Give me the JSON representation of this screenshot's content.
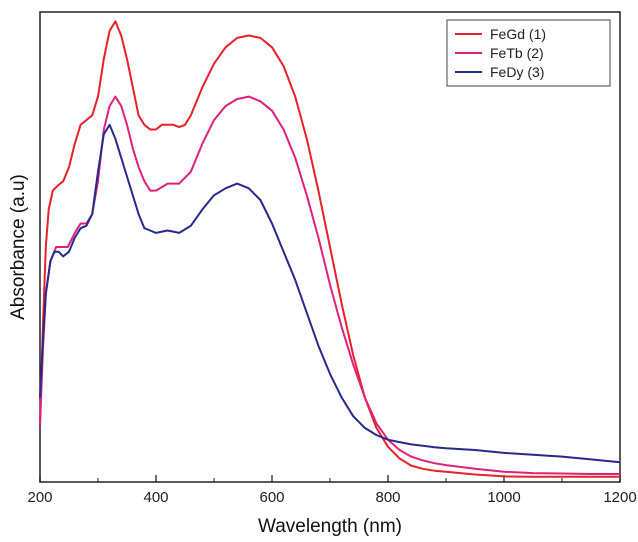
{
  "chart_data": {
    "type": "line",
    "xlabel": "Wavelength (nm)",
    "ylabel": "Absorbance (a.u)",
    "xlim": [
      200,
      1200
    ],
    "ylim": [
      0,
      1
    ],
    "x_ticks": [
      200,
      400,
      600,
      800,
      1000,
      1200
    ],
    "grid": false,
    "legend_position": "top-right",
    "series": [
      {
        "name": "FeGd (1)",
        "color": "#e8202a",
        "points": [
          [
            200,
            0.12
          ],
          [
            205,
            0.33
          ],
          [
            210,
            0.5
          ],
          [
            215,
            0.58
          ],
          [
            222,
            0.62
          ],
          [
            230,
            0.63
          ],
          [
            240,
            0.64
          ],
          [
            250,
            0.67
          ],
          [
            260,
            0.72
          ],
          [
            270,
            0.76
          ],
          [
            280,
            0.77
          ],
          [
            290,
            0.78
          ],
          [
            300,
            0.82
          ],
          [
            310,
            0.9
          ],
          [
            320,
            0.96
          ],
          [
            330,
            0.98
          ],
          [
            340,
            0.95
          ],
          [
            350,
            0.9
          ],
          [
            360,
            0.84
          ],
          [
            370,
            0.78
          ],
          [
            380,
            0.76
          ],
          [
            390,
            0.75
          ],
          [
            400,
            0.75
          ],
          [
            410,
            0.76
          ],
          [
            420,
            0.76
          ],
          [
            430,
            0.76
          ],
          [
            440,
            0.755
          ],
          [
            450,
            0.76
          ],
          [
            460,
            0.78
          ],
          [
            480,
            0.84
          ],
          [
            500,
            0.89
          ],
          [
            520,
            0.925
          ],
          [
            540,
            0.945
          ],
          [
            560,
            0.95
          ],
          [
            580,
            0.945
          ],
          [
            600,
            0.925
          ],
          [
            620,
            0.885
          ],
          [
            640,
            0.82
          ],
          [
            660,
            0.73
          ],
          [
            680,
            0.62
          ],
          [
            700,
            0.5
          ],
          [
            720,
            0.38
          ],
          [
            740,
            0.27
          ],
          [
            760,
            0.18
          ],
          [
            780,
            0.115
          ],
          [
            800,
            0.075
          ],
          [
            820,
            0.05
          ],
          [
            840,
            0.035
          ],
          [
            860,
            0.028
          ],
          [
            880,
            0.024
          ],
          [
            900,
            0.022
          ],
          [
            950,
            0.016
          ],
          [
            1000,
            0.012
          ],
          [
            1050,
            0.011
          ],
          [
            1100,
            0.011
          ],
          [
            1150,
            0.011
          ],
          [
            1200,
            0.011
          ]
        ]
      },
      {
        "name": "FeTb (2)",
        "color": "#e0207a",
        "points": [
          [
            200,
            0.12
          ],
          [
            205,
            0.28
          ],
          [
            210,
            0.4
          ],
          [
            218,
            0.47
          ],
          [
            228,
            0.5
          ],
          [
            238,
            0.5
          ],
          [
            248,
            0.5
          ],
          [
            260,
            0.53
          ],
          [
            270,
            0.55
          ],
          [
            280,
            0.55
          ],
          [
            290,
            0.57
          ],
          [
            300,
            0.64
          ],
          [
            310,
            0.75
          ],
          [
            320,
            0.8
          ],
          [
            330,
            0.82
          ],
          [
            340,
            0.8
          ],
          [
            350,
            0.76
          ],
          [
            360,
            0.71
          ],
          [
            370,
            0.67
          ],
          [
            380,
            0.64
          ],
          [
            390,
            0.62
          ],
          [
            400,
            0.62
          ],
          [
            420,
            0.635
          ],
          [
            440,
            0.635
          ],
          [
            460,
            0.66
          ],
          [
            480,
            0.72
          ],
          [
            500,
            0.77
          ],
          [
            520,
            0.8
          ],
          [
            540,
            0.815
          ],
          [
            560,
            0.82
          ],
          [
            580,
            0.81
          ],
          [
            600,
            0.79
          ],
          [
            620,
            0.75
          ],
          [
            640,
            0.69
          ],
          [
            660,
            0.61
          ],
          [
            680,
            0.52
          ],
          [
            700,
            0.42
          ],
          [
            720,
            0.33
          ],
          [
            740,
            0.25
          ],
          [
            760,
            0.18
          ],
          [
            780,
            0.125
          ],
          [
            800,
            0.09
          ],
          [
            820,
            0.068
          ],
          [
            840,
            0.054
          ],
          [
            860,
            0.046
          ],
          [
            880,
            0.04
          ],
          [
            900,
            0.036
          ],
          [
            950,
            0.028
          ],
          [
            1000,
            0.022
          ],
          [
            1050,
            0.019
          ],
          [
            1100,
            0.018
          ],
          [
            1150,
            0.017
          ],
          [
            1200,
            0.017
          ]
        ]
      },
      {
        "name": "FeDy (3)",
        "color": "#262a8c",
        "points": [
          [
            200,
            0.18
          ],
          [
            205,
            0.3
          ],
          [
            210,
            0.4
          ],
          [
            218,
            0.47
          ],
          [
            225,
            0.49
          ],
          [
            232,
            0.49
          ],
          [
            240,
            0.48
          ],
          [
            250,
            0.49
          ],
          [
            260,
            0.52
          ],
          [
            270,
            0.54
          ],
          [
            280,
            0.545
          ],
          [
            290,
            0.57
          ],
          [
            300,
            0.66
          ],
          [
            310,
            0.74
          ],
          [
            320,
            0.76
          ],
          [
            330,
            0.73
          ],
          [
            340,
            0.69
          ],
          [
            350,
            0.65
          ],
          [
            360,
            0.61
          ],
          [
            370,
            0.57
          ],
          [
            380,
            0.54
          ],
          [
            390,
            0.535
          ],
          [
            400,
            0.53
          ],
          [
            420,
            0.535
          ],
          [
            440,
            0.53
          ],
          [
            460,
            0.545
          ],
          [
            480,
            0.58
          ],
          [
            500,
            0.61
          ],
          [
            520,
            0.625
          ],
          [
            540,
            0.635
          ],
          [
            560,
            0.625
          ],
          [
            580,
            0.6
          ],
          [
            600,
            0.55
          ],
          [
            620,
            0.49
          ],
          [
            640,
            0.43
          ],
          [
            660,
            0.36
          ],
          [
            680,
            0.29
          ],
          [
            700,
            0.23
          ],
          [
            720,
            0.18
          ],
          [
            740,
            0.14
          ],
          [
            760,
            0.115
          ],
          [
            780,
            0.1
          ],
          [
            800,
            0.09
          ],
          [
            820,
            0.085
          ],
          [
            840,
            0.08
          ],
          [
            860,
            0.077
          ],
          [
            880,
            0.074
          ],
          [
            900,
            0.072
          ],
          [
            950,
            0.068
          ],
          [
            1000,
            0.062
          ],
          [
            1050,
            0.058
          ],
          [
            1100,
            0.054
          ],
          [
            1150,
            0.048
          ],
          [
            1200,
            0.042
          ]
        ]
      }
    ]
  }
}
